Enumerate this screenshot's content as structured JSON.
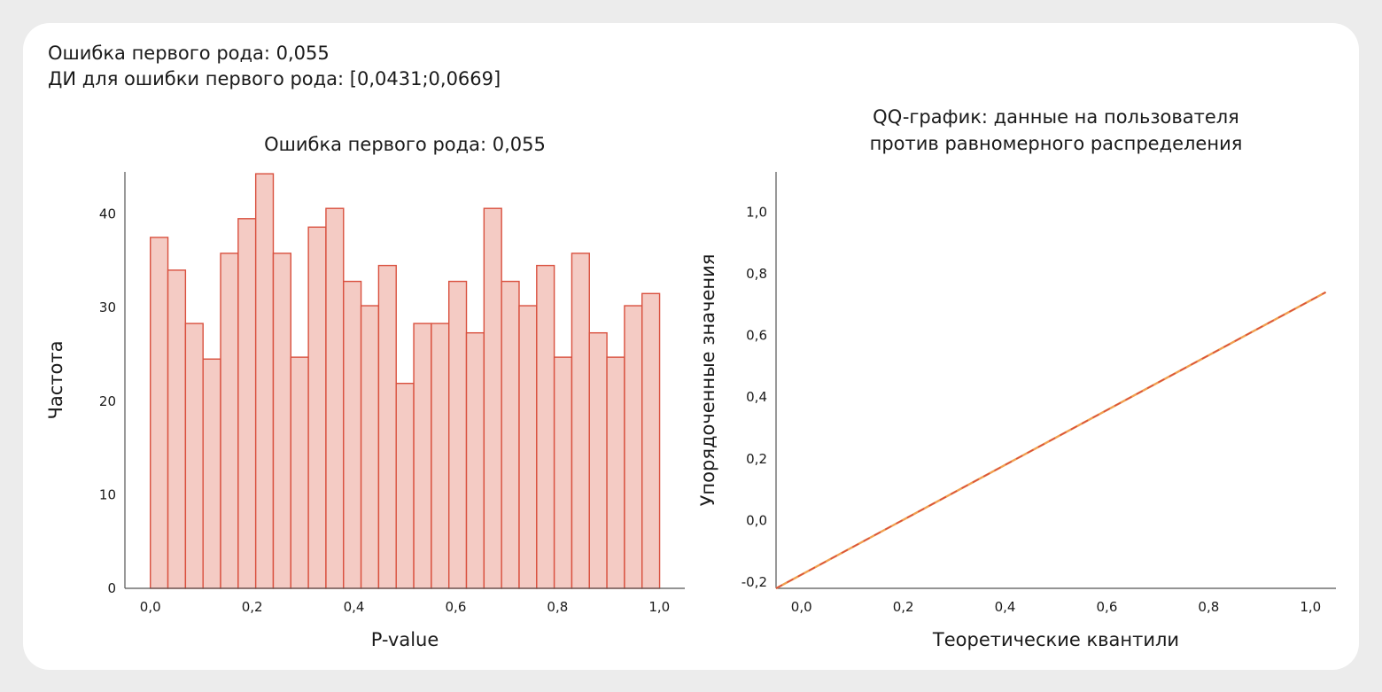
{
  "summary": {
    "line1": "Ошибка первого рода: 0,055",
    "line2": "ДИ для ошибки первого рода: [0,0431;0,0669]"
  },
  "colors": {
    "bar_fill": "#f4cbc4",
    "bar_stroke": "#d9503e",
    "line_orange": "#f0a050",
    "line_red": "#d9503e",
    "axis": "#555555"
  },
  "chart_data": [
    {
      "type": "bar",
      "title": "Ошибка первого рода: 0,055",
      "xlabel": "P-value",
      "ylabel": "Частота",
      "xlim": [
        -0.05,
        1.05
      ],
      "ylim": [
        0,
        44.5
      ],
      "x_ticks": [
        0,
        0.2,
        0.4,
        0.6,
        0.8,
        1.0
      ],
      "x_tick_labels": [
        "0,0",
        "0,2",
        "0,4",
        "0,6",
        "0,8",
        "1,0"
      ],
      "y_ticks": [
        0,
        10,
        20,
        30,
        40
      ],
      "y_tick_labels": [
        "0",
        "10",
        "20",
        "30",
        "40"
      ],
      "bin_width": 0.0345,
      "bin_start": 0.0,
      "values": [
        37.5,
        34,
        28.3,
        24.5,
        35.8,
        39.5,
        44.3,
        35.8,
        24.7,
        38.6,
        40.6,
        32.8,
        30.2,
        34.5,
        21.9,
        28.3,
        28.3,
        32.8,
        27.3,
        40.6,
        32.8,
        30.2,
        34.5,
        24.7,
        35.8,
        27.3,
        24.7,
        30.2,
        31.5
      ]
    },
    {
      "type": "line",
      "title": "QQ-график: данные на пользователя\nпротив равномерного распределения",
      "title_lines": [
        "QQ-график: данные на пользователя",
        "против равномерного распределения"
      ],
      "xlabel": "Теоретические квантили",
      "ylabel": "Упорядоченные значения",
      "xlim": [
        -0.05,
        1.05
      ],
      "ylim": [
        -0.22,
        1.13
      ],
      "x_ticks": [
        0,
        0.2,
        0.4,
        0.6,
        0.8,
        1.0
      ],
      "x_tick_labels": [
        "0,0",
        "0,2",
        "0,4",
        "0,6",
        "0,8",
        "1,0"
      ],
      "y_ticks": [
        -0.2,
        0,
        0.2,
        0.4,
        0.6,
        0.8,
        1.0
      ],
      "y_tick_labels": [
        "-0,2",
        "0,0",
        "0,2",
        "0,4",
        "0,6",
        "0,8",
        "1,0"
      ],
      "series": [
        {
          "x": [
            -0.05,
            1.03
          ],
          "y": [
            -0.22,
            0.74
          ],
          "style": "solid"
        },
        {
          "x": [
            -0.05,
            1.03
          ],
          "y": [
            -0.22,
            0.74
          ],
          "style": "dashed"
        }
      ]
    }
  ]
}
